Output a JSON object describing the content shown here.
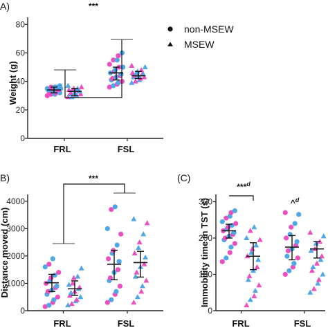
{
  "colors": {
    "female": "#ec4fbf",
    "male": "#4fa8e6",
    "axis": "#222222",
    "bracket": "#666666"
  },
  "legend": [
    {
      "marker": "circle",
      "label": "non-MSEW"
    },
    {
      "marker": "triangle",
      "label": "MSEW"
    }
  ],
  "chart_data": [
    {
      "type": "scatter",
      "panel_label": "A)",
      "ylabel": "Weight (g)",
      "yticks": [
        0,
        20,
        40,
        60,
        80
      ],
      "ylim": [
        0,
        85
      ],
      "categories": [
        "FRL",
        "FSL"
      ],
      "groups": [
        {
          "category": "FRL",
          "marker": "circle",
          "mean": 34,
          "err_low": 32,
          "err_high": 36,
          "female": [
            36,
            35,
            34,
            33,
            32,
            31,
            34,
            35,
            30,
            33
          ],
          "male": [
            37,
            36,
            35,
            34,
            33,
            32,
            35,
            31,
            34,
            36
          ]
        },
        {
          "category": "FRL",
          "marker": "triangle",
          "mean": 33,
          "err_low": 30,
          "err_high": 35,
          "female": [
            35,
            33,
            31,
            29,
            34,
            32,
            30,
            36
          ],
          "male": [
            37,
            34,
            32,
            30,
            29,
            33,
            35,
            31
          ]
        },
        {
          "category": "FSL",
          "marker": "circle",
          "mean": 46,
          "err_low": 41,
          "err_high": 50,
          "female": [
            58,
            52,
            50,
            47,
            44,
            42,
            40,
            38,
            36,
            55
          ],
          "male": [
            60,
            55,
            48,
            46,
            45,
            43,
            41,
            39,
            37,
            50
          ]
        },
        {
          "category": "FSL",
          "marker": "triangle",
          "mean": 44,
          "err_low": 42,
          "err_high": 47,
          "female": [
            51,
            48,
            46,
            44,
            42,
            40,
            45,
            43
          ],
          "male": [
            50,
            47,
            45,
            43,
            41,
            39,
            44,
            46
          ]
        }
      ],
      "annotations": [
        {
          "text": "***"
        }
      ]
    },
    {
      "type": "scatter",
      "panel_label": "B)",
      "ylabel": "Distance moved (cm)",
      "yticks": [
        0,
        1000,
        2000,
        3000,
        4000
      ],
      "ylim": [
        0,
        4250
      ],
      "categories": [
        "FRL",
        "FSL"
      ],
      "groups": [
        {
          "category": "FRL",
          "marker": "circle",
          "mean": 1020,
          "err_low": 700,
          "err_high": 1330,
          "female": [
            1700,
            1400,
            1200,
            1000,
            850,
            700,
            500,
            300,
            150
          ],
          "male": [
            1900,
            1600,
            1300,
            1100,
            900,
            750,
            600,
            400,
            200
          ]
        },
        {
          "category": "FRL",
          "marker": "triangle",
          "mean": 800,
          "err_low": 560,
          "err_high": 1090,
          "female": [
            1200,
            1000,
            850,
            700,
            550,
            400,
            250
          ],
          "male": [
            1550,
            1250,
            950,
            800,
            650,
            500,
            350,
            200
          ]
        },
        {
          "category": "FSL",
          "marker": "circle",
          "mean": 1700,
          "err_low": 1130,
          "err_high": 2210,
          "female": [
            3700,
            2800,
            2200,
            1900,
            1500,
            1200,
            900,
            600,
            300
          ],
          "male": [
            3800,
            3000,
            2400,
            2100,
            1800,
            1400,
            1100,
            700,
            400
          ]
        },
        {
          "category": "FSL",
          "marker": "triangle",
          "mean": 1760,
          "err_low": 1230,
          "err_high": 2170,
          "female": [
            3200,
            2500,
            2100,
            1700,
            1400,
            1100,
            700,
            300
          ],
          "male": [
            3350,
            2800,
            2300,
            1950,
            1600,
            1250,
            900,
            500
          ]
        }
      ],
      "annotations": [
        {
          "text": "***"
        }
      ]
    },
    {
      "type": "scatter",
      "panel_label": "(C)",
      "ylabel": "Immobility time in TST (s)",
      "yticks": [
        0,
        100,
        200,
        300
      ],
      "ylim": [
        0,
        320
      ],
      "categories": [
        "FRL",
        "FSL"
      ],
      "groups": [
        {
          "category": "FRL",
          "marker": "circle",
          "mean": 220,
          "err_low": 200,
          "err_high": 238,
          "female": [
            270,
            255,
            240,
            230,
            220,
            210,
            200,
            185,
            160,
            135
          ],
          "male": [
            275,
            260,
            245,
            235,
            225,
            215,
            205,
            195,
            175,
            145
          ]
        },
        {
          "category": "FRL",
          "marker": "triangle",
          "mean": 150,
          "err_low": 113,
          "err_high": 187,
          "female": [
            220,
            195,
            170,
            150,
            120,
            95,
            70,
            40,
            15
          ],
          "male": [
            230,
            200,
            180,
            160,
            140,
            110,
            85,
            55,
            30
          ]
        },
        {
          "category": "FSL",
          "marker": "circle",
          "mean": 175,
          "err_low": 140,
          "err_high": 207,
          "female": [
            270,
            230,
            200,
            180,
            165,
            145,
            120,
            100
          ],
          "male": [
            265,
            240,
            210,
            190,
            170,
            150,
            130,
            110
          ]
        },
        {
          "category": "FSL",
          "marker": "triangle",
          "mean": 170,
          "err_low": 145,
          "err_high": 190,
          "female": [
            215,
            190,
            170,
            150,
            130,
            110,
            85,
            60
          ],
          "male": [
            205,
            185,
            165,
            140,
            120,
            100,
            75,
            50
          ]
        }
      ],
      "annotations": [
        {
          "text": "***",
          "superscript": "d"
        },
        {
          "text": "^",
          "superscript": "d"
        }
      ]
    }
  ]
}
